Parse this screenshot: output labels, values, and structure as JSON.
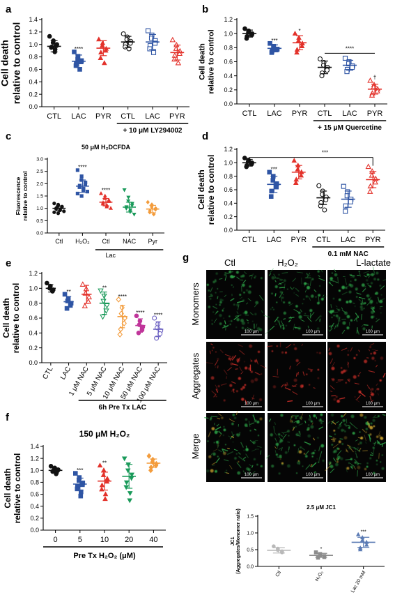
{
  "figure_letters": [
    "a",
    "b",
    "c",
    "d",
    "e",
    "f",
    "g"
  ],
  "chart_data": [
    {
      "panel": "a",
      "type": "scatter",
      "ylabel": "Cell death relative to control",
      "ylim": [
        0,
        1.4
      ],
      "yticks": [
        "0.0",
        "0.2",
        "0.4",
        "0.6",
        "0.8",
        "1.0",
        "1.2",
        "1.4"
      ],
      "categories": [
        "CTL",
        "LAC",
        "PYR",
        "CTL",
        "LAC",
        "PYR"
      ],
      "groups": [
        {
          "label": "CTL",
          "mean": 0.97,
          "sd": 0.09,
          "color": "#111111",
          "marker": "filled-circle",
          "points": [
            1.13,
            1.06,
            1.03,
            1.0,
            0.98,
            0.96,
            0.95,
            0.92,
            0.88
          ]
        },
        {
          "label": "LAC",
          "mean": 0.73,
          "sd": 0.1,
          "color": "#2f55a4",
          "marker": "filled-square",
          "points": [
            0.88,
            0.81,
            0.77,
            0.74,
            0.72,
            0.69,
            0.66,
            0.6
          ]
        },
        {
          "label": "PYR",
          "mean": 0.94,
          "sd": 0.12,
          "color": "#e3322b",
          "marker": "filled-triangle",
          "points": [
            1.08,
            1.02,
            0.98,
            0.93,
            0.9,
            0.87,
            0.78,
            0.7
          ]
        },
        {
          "label": "CTL",
          "mean": 1.04,
          "sd": 0.09,
          "color": "#111111",
          "marker": "open-circle",
          "points": [
            1.17,
            1.12,
            1.08,
            1.05,
            1.02,
            1.0,
            0.96,
            0.93
          ]
        },
        {
          "label": "LAC",
          "mean": 1.04,
          "sd": 0.12,
          "color": "#2f55a4",
          "marker": "open-square",
          "points": [
            1.22,
            1.15,
            1.1,
            1.06,
            1.02,
            0.98,
            0.93,
            0.87
          ]
        },
        {
          "label": "PYR",
          "mean": 0.87,
          "sd": 0.12,
          "color": "#e3322b",
          "marker": "open-triangle",
          "points": [
            1.07,
            0.99,
            0.93,
            0.89,
            0.85,
            0.82,
            0.76,
            0.7
          ]
        }
      ],
      "stars": [
        "",
        "****",
        "",
        "",
        "",
        ""
      ],
      "treatment_bar": "+ 10 μM LY294002"
    },
    {
      "panel": "b",
      "type": "scatter",
      "ylabel": "Cell death relative to control",
      "ylim": [
        0,
        1.2
      ],
      "yticks": [
        "0.0",
        "0.2",
        "0.4",
        "0.6",
        "0.8",
        "1.0",
        "1.2"
      ],
      "categories": [
        "CTL",
        "LAC",
        "PYR",
        "CTL",
        "LAC",
        "PYR"
      ],
      "groups": [
        {
          "label": "CTL",
          "mean": 1.0,
          "sd": 0.05,
          "color": "#111111",
          "marker": "filled-circle",
          "points": [
            1.07,
            1.04,
            1.02,
            1.0,
            0.98,
            0.96,
            0.93
          ]
        },
        {
          "label": "LAC",
          "mean": 0.79,
          "sd": 0.05,
          "color": "#2f55a4",
          "marker": "filled-square",
          "points": [
            0.86,
            0.82,
            0.8,
            0.78,
            0.77,
            0.75,
            0.73
          ]
        },
        {
          "label": "PYR",
          "mean": 0.87,
          "sd": 0.1,
          "color": "#e3322b",
          "marker": "filled-triangle",
          "points": [
            1.0,
            0.94,
            0.9,
            0.86,
            0.82,
            0.77,
            0.73
          ]
        },
        {
          "label": "CTL",
          "mean": 0.52,
          "sd": 0.09,
          "color": "#111111",
          "marker": "open-circle",
          "points": [
            0.64,
            0.59,
            0.55,
            0.52,
            0.48,
            0.44,
            0.4
          ]
        },
        {
          "label": "LAC",
          "mean": 0.55,
          "sd": 0.07,
          "color": "#2f55a4",
          "marker": "open-square",
          "points": [
            0.65,
            0.6,
            0.57,
            0.54,
            0.52,
            0.49,
            0.46
          ]
        },
        {
          "label": "PYR",
          "mean": 0.21,
          "sd": 0.07,
          "color": "#e3322b",
          "marker": "open-triangle",
          "points": [
            0.33,
            0.27,
            0.24,
            0.21,
            0.18,
            0.15,
            0.12
          ]
        }
      ],
      "stars": [
        "",
        "***",
        "*",
        "",
        "",
        "†"
      ],
      "bracket": {
        "from": 3,
        "to": 5,
        "label": "****"
      },
      "treatment_bar": "+ 15 μM Quercetine"
    },
    {
      "panel": "c",
      "type": "scatter",
      "title": "50 μM H₂DCFDA",
      "ylabel": "Fluorescence relative to control",
      "ylim": [
        0,
        3.0
      ],
      "yticks": [
        "0.0",
        "0.5",
        "1.0",
        "1.5",
        "2.0",
        "2.5",
        "3.0"
      ],
      "categories": [
        "Ctl",
        "H₂O₂",
        "Ctl",
        "NAC",
        "Pyr"
      ],
      "groups": [
        {
          "label": "Ctl",
          "mean": 1.0,
          "sd": 0.1,
          "color": "#111111",
          "marker": "filled-circle",
          "points": [
            1.2,
            1.15,
            1.1,
            1.07,
            1.04,
            1.01,
            0.98,
            0.95,
            0.92,
            0.88,
            0.84,
            0.8
          ]
        },
        {
          "label": "H₂O₂",
          "mean": 1.9,
          "sd": 0.25,
          "color": "#2f55a4",
          "marker": "filled-square",
          "points": [
            2.55,
            2.3,
            2.15,
            2.05,
            1.98,
            1.92,
            1.86,
            1.8,
            1.74,
            1.68,
            1.6,
            1.5
          ]
        },
        {
          "label": "Ctl",
          "mean": 1.25,
          "sd": 0.15,
          "color": "#e3322b",
          "marker": "filled-triangle",
          "points": [
            1.6,
            1.5,
            1.4,
            1.33,
            1.28,
            1.23,
            1.18,
            1.12,
            1.06,
            1.0
          ]
        },
        {
          "label": "NAC",
          "mean": 1.05,
          "sd": 0.2,
          "color": "#1a9a5a",
          "marker": "filled-triangle-down",
          "points": [
            1.75,
            1.45,
            1.3,
            1.2,
            1.12,
            1.06,
            1.0,
            0.94,
            0.86,
            0.76
          ]
        },
        {
          "label": "Pyr",
          "mean": 0.97,
          "sd": 0.15,
          "color": "#f39c3c",
          "marker": "filled-diamond",
          "points": [
            1.25,
            1.15,
            1.06,
            1.0,
            0.95,
            0.9,
            0.84,
            0.76
          ]
        }
      ],
      "stars": [
        "",
        "****",
        "****",
        "",
        ""
      ],
      "group_label": "Lac"
    },
    {
      "panel": "d",
      "type": "scatter",
      "ylabel": "Cell death relative to control",
      "ylim": [
        0,
        1.2
      ],
      "yticks": [
        "0.0",
        "0.2",
        "0.4",
        "0.6",
        "0.8",
        "1.0",
        "1.2"
      ],
      "categories": [
        "CTL",
        "LAC",
        "PYR",
        "CTL",
        "LAC",
        "PYR"
      ],
      "groups": [
        {
          "label": "CTL",
          "mean": 1.0,
          "sd": 0.05,
          "color": "#111111",
          "marker": "filled-circle",
          "points": [
            1.07,
            1.04,
            1.02,
            1.0,
            0.98,
            0.96,
            0.94
          ]
        },
        {
          "label": "LAC",
          "mean": 0.68,
          "sd": 0.12,
          "color": "#2f55a4",
          "marker": "filled-square",
          "points": [
            0.86,
            0.8,
            0.74,
            0.69,
            0.64,
            0.58,
            0.5
          ]
        },
        {
          "label": "PYR",
          "mean": 0.86,
          "sd": 0.1,
          "color": "#e3322b",
          "marker": "filled-triangle",
          "points": [
            1.03,
            0.96,
            0.9,
            0.86,
            0.81,
            0.75,
            0.7
          ]
        },
        {
          "label": "CTL",
          "mean": 0.48,
          "sd": 0.1,
          "color": "#111111",
          "marker": "open-circle",
          "points": [
            0.66,
            0.58,
            0.53,
            0.49,
            0.45,
            0.41,
            0.36,
            0.3
          ]
        },
        {
          "label": "LAC",
          "mean": 0.46,
          "sd": 0.12,
          "color": "#2f55a4",
          "marker": "open-square",
          "points": [
            0.65,
            0.57,
            0.51,
            0.46,
            0.42,
            0.36,
            0.28
          ]
        },
        {
          "label": "PYR",
          "mean": 0.75,
          "sd": 0.12,
          "color": "#e3322b",
          "marker": "open-triangle",
          "points": [
            0.94,
            0.87,
            0.81,
            0.76,
            0.71,
            0.65,
            0.57
          ]
        }
      ],
      "stars": [
        "",
        "***",
        "",
        "",
        "",
        ""
      ],
      "bracket": {
        "from": 0,
        "to": 5,
        "label": "***"
      },
      "treatment_bar": "0.1 mM NAC"
    },
    {
      "panel": "e",
      "type": "scatter",
      "ylabel": "Cell death relative to control",
      "ylim": [
        0,
        1.2
      ],
      "yticks": [
        "0.0",
        "0.2",
        "0.4",
        "0.6",
        "0.8",
        "1.0",
        "1.2"
      ],
      "categories": [
        "CTL",
        "LAC",
        "1 μM NAC",
        "5 μM NAC",
        "10 μM NAC",
        "50 μM NAC",
        "100 μM NAC"
      ],
      "groups": [
        {
          "label": "CTL",
          "mean": 1.0,
          "sd": 0.05,
          "color": "#111111",
          "marker": "filled-circle",
          "points": [
            1.07,
            1.03,
            1.0,
            0.98,
            0.96
          ]
        },
        {
          "label": "LAC",
          "mean": 0.82,
          "sd": 0.07,
          "color": "#2f55a4",
          "marker": "filled-square",
          "points": [
            0.92,
            0.86,
            0.83,
            0.8,
            0.77,
            0.73
          ]
        },
        {
          "label": "1 μM NAC",
          "mean": 0.92,
          "sd": 0.12,
          "color": "#e3322b",
          "marker": "open-triangle",
          "points": [
            1.05,
            0.99,
            0.93,
            0.88,
            0.82,
            0.76
          ]
        },
        {
          "label": "5 μM NAC",
          "mean": 0.8,
          "sd": 0.15,
          "color": "#1a9a5a",
          "marker": "open-triangle-down",
          "points": [
            0.97,
            0.9,
            0.83,
            0.77,
            0.7,
            0.62
          ]
        },
        {
          "label": "10 μM NAC",
          "mean": 0.62,
          "sd": 0.15,
          "color": "#f39c3c",
          "marker": "open-diamond",
          "points": [
            0.85,
            0.74,
            0.66,
            0.6,
            0.53,
            0.45,
            0.38
          ]
        },
        {
          "label": "50 μM NAC",
          "mean": 0.5,
          "sd": 0.09,
          "color": "#c0359a",
          "marker": "filled-circle",
          "points": [
            0.63,
            0.56,
            0.51,
            0.48,
            0.44,
            0.4
          ]
        },
        {
          "label": "100 μM NAC",
          "mean": 0.45,
          "sd": 0.1,
          "color": "#6a5fc1",
          "marker": "open-circle",
          "points": [
            0.6,
            0.52,
            0.47,
            0.43,
            0.39,
            0.33
          ]
        }
      ],
      "stars": [
        "",
        "**",
        "",
        "**",
        "****",
        "****",
        "****"
      ],
      "treatment_bar": "6h Pre Tx LAC"
    },
    {
      "panel": "f",
      "type": "scatter",
      "title": "150 μM H₂O₂",
      "ylabel": "Cell death relative to control",
      "xlabel": "Pre Tx H₂O₂ (μM)",
      "ylim": [
        0,
        1.4
      ],
      "yticks": [
        "0.0",
        "0.2",
        "0.4",
        "0.6",
        "0.8",
        "1.0",
        "1.2",
        "1.4"
      ],
      "categories": [
        "0",
        "5",
        "10",
        "20",
        "40"
      ],
      "groups": [
        {
          "label": "0",
          "mean": 1.0,
          "sd": 0.04,
          "color": "#111111",
          "marker": "filled-circle",
          "points": [
            1.07,
            1.04,
            1.02,
            1.01,
            1.0,
            0.99,
            0.98,
            0.96,
            0.94
          ]
        },
        {
          "label": "5",
          "mean": 0.77,
          "sd": 0.1,
          "color": "#2f55a4",
          "marker": "filled-square",
          "points": [
            0.95,
            0.88,
            0.83,
            0.79,
            0.76,
            0.73,
            0.69,
            0.64,
            0.57
          ]
        },
        {
          "label": "10",
          "mean": 0.82,
          "sd": 0.15,
          "color": "#e3322b",
          "marker": "filled-triangle",
          "points": [
            1.08,
            1.0,
            0.92,
            0.86,
            0.81,
            0.75,
            0.68,
            0.6,
            0.52
          ]
        },
        {
          "label": "20",
          "mean": 0.9,
          "sd": 0.2,
          "color": "#1a9a5a",
          "marker": "filled-triangle-down",
          "points": [
            1.2,
            1.1,
            1.0,
            0.93,
            0.87,
            0.8,
            0.72,
            0.62,
            0.5
          ]
        },
        {
          "label": "40",
          "mean": 1.12,
          "sd": 0.07,
          "color": "#f39c3c",
          "marker": "filled-diamond",
          "points": [
            1.24,
            1.18,
            1.14,
            1.11,
            1.08,
            1.05,
            1.0
          ]
        }
      ],
      "stars": [
        "",
        "***",
        "**",
        "",
        ""
      ]
    },
    {
      "panel": "g-inset",
      "type": "scatter",
      "title": "2.5 μM JC1",
      "ylabel": "JC1 (Aggregates/Monomer ratio)",
      "ylim": [
        0,
        1.5
      ],
      "yticks": [
        "0.0",
        "0.5",
        "1.0",
        "1.5"
      ],
      "categories": [
        "Ctl",
        "H₂O₂",
        "Lac 20 mM"
      ],
      "groups": [
        {
          "label": "Ctl",
          "mean": 0.48,
          "sd": 0.08,
          "color": "#b9b9b9",
          "marker": "filled-circle",
          "points": [
            0.6,
            0.53,
            0.49,
            0.45,
            0.42
          ]
        },
        {
          "label": "H₂O₂",
          "mean": 0.33,
          "sd": 0.06,
          "color": "#8c8c8c",
          "marker": "filled-square",
          "points": [
            0.42,
            0.37,
            0.34,
            0.31,
            0.28,
            0.26
          ]
        },
        {
          "label": "Lac 20 mM",
          "mean": 0.72,
          "sd": 0.15,
          "color": "#5b7bb4",
          "marker": "filled-triangle",
          "points": [
            0.95,
            0.86,
            0.78,
            0.72,
            0.64,
            0.55,
            0.5
          ]
        }
      ],
      "stars": [
        "",
        "*",
        "***"
      ]
    }
  ],
  "micrographs": {
    "column_labels": [
      "Ctl",
      "H₂O₂",
      "L-lactate"
    ],
    "row_labels": [
      "Monomers",
      "Aggregates",
      "Merge"
    ],
    "scale_bar": "100 μm",
    "colors": {
      "monomer": "#2fa84a",
      "aggregate": "#d4302a",
      "merge": "#c9a12f",
      "background": "#050505"
    }
  }
}
